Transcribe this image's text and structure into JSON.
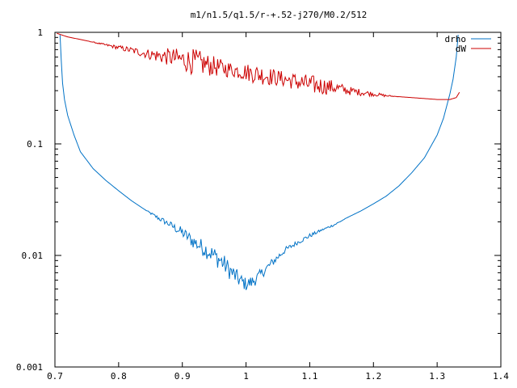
{
  "chart_data": {
    "type": "line",
    "title": "m1/n1.5/q1.5/r-+.52-j270/M0.2/512",
    "xlabel": "",
    "ylabel": "",
    "xlim": [
      0.7,
      1.4
    ],
    "ylim": [
      0.001,
      1
    ],
    "yscale": "log",
    "grid": false,
    "legend_position": "top-right",
    "x_ticks": [
      "0.7",
      "0.8",
      "0.9",
      "1",
      "1.1",
      "1.2",
      "1.3",
      "1.4"
    ],
    "x_tick_values": [
      0.7,
      0.8,
      0.9,
      1.0,
      1.1,
      1.2,
      1.3,
      1.4
    ],
    "y_ticks": [
      "1",
      "0.1",
      "0.01",
      "0.001"
    ],
    "y_tick_values": [
      1,
      0.1,
      0.01,
      0.001
    ],
    "series": [
      {
        "name": "drho",
        "color": "#0072c6",
        "x": [
          0.708,
          0.71,
          0.712,
          0.715,
          0.72,
          0.73,
          0.74,
          0.76,
          0.78,
          0.8,
          0.82,
          0.84,
          0.86,
          0.88,
          0.9,
          0.92,
          0.94,
          0.96,
          0.98,
          0.99,
          1.0,
          1.01,
          1.02,
          1.04,
          1.06,
          1.08,
          1.1,
          1.12,
          1.14,
          1.16,
          1.18,
          1.2,
          1.22,
          1.24,
          1.26,
          1.28,
          1.3,
          1.31,
          1.32,
          1.325,
          1.33,
          1.333
        ],
        "y": [
          0.95,
          0.55,
          0.35,
          0.25,
          0.18,
          0.12,
          0.085,
          0.06,
          0.047,
          0.038,
          0.031,
          0.026,
          0.022,
          0.019,
          0.016,
          0.013,
          0.011,
          0.009,
          0.0068,
          0.006,
          0.0055,
          0.0058,
          0.0065,
          0.0085,
          0.011,
          0.013,
          0.015,
          0.017,
          0.019,
          0.022,
          0.025,
          0.029,
          0.034,
          0.042,
          0.055,
          0.075,
          0.12,
          0.17,
          0.28,
          0.38,
          0.6,
          0.95
        ],
        "noise": [
          0,
          0,
          0,
          0,
          0,
          0,
          0,
          0,
          0,
          0,
          0,
          0,
          0.02,
          0.03,
          0.05,
          0.07,
          0.08,
          0.09,
          0.08,
          0.07,
          0.06,
          0.06,
          0.05,
          0.04,
          0.03,
          0.02,
          0.02,
          0.01,
          0.01,
          0,
          0,
          0,
          0,
          0,
          0,
          0,
          0,
          0,
          0,
          0,
          0,
          0
        ]
      },
      {
        "name": "dW",
        "color": "#cc0000",
        "x": [
          0.703,
          0.72,
          0.75,
          0.78,
          0.8,
          0.82,
          0.84,
          0.86,
          0.88,
          0.9,
          0.92,
          0.94,
          0.96,
          0.98,
          1.0,
          1.02,
          1.04,
          1.06,
          1.08,
          1.1,
          1.12,
          1.14,
          1.16,
          1.18,
          1.2,
          1.22,
          1.24,
          1.26,
          1.28,
          1.3,
          1.32,
          1.33,
          1.335
        ],
        "y": [
          0.98,
          0.91,
          0.84,
          0.77,
          0.73,
          0.69,
          0.65,
          0.62,
          0.6,
          0.57,
          0.54,
          0.51,
          0.48,
          0.46,
          0.44,
          0.42,
          0.4,
          0.38,
          0.36,
          0.34,
          0.33,
          0.32,
          0.3,
          0.29,
          0.28,
          0.27,
          0.265,
          0.26,
          0.255,
          0.25,
          0.25,
          0.26,
          0.29
        ],
        "noise": [
          0,
          0,
          0,
          0.01,
          0.02,
          0.03,
          0.04,
          0.06,
          0.08,
          0.1,
          0.12,
          0.1,
          0.08,
          0.07,
          0.08,
          0.09,
          0.08,
          0.07,
          0.08,
          0.09,
          0.08,
          0.06,
          0.04,
          0.03,
          0.02,
          0.01,
          0,
          0,
          0,
          0,
          0,
          0,
          0
        ]
      }
    ]
  }
}
